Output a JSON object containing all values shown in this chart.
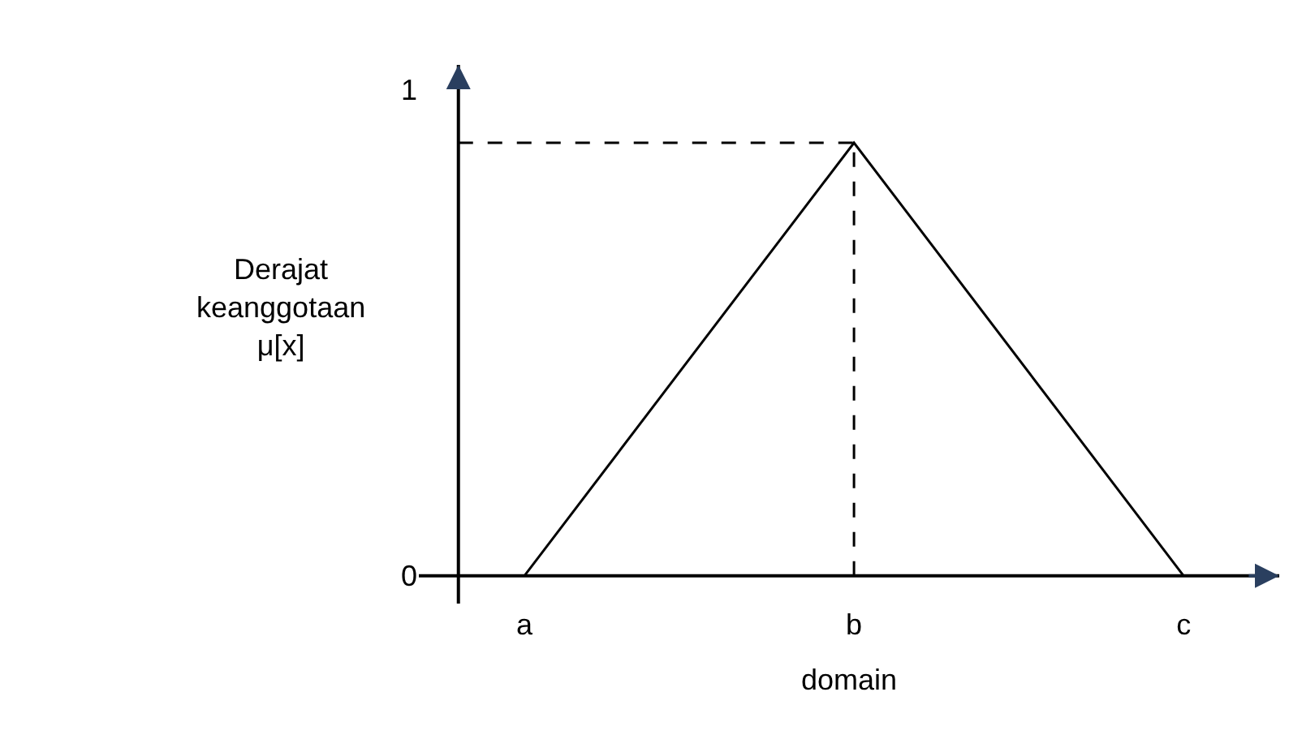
{
  "chart_data": {
    "type": "line",
    "xlabel": "domain",
    "ylabel": "Derajat keanggotaan μ[x]",
    "categories": [
      "a",
      "b",
      "c"
    ],
    "ylim": [
      -0.057,
      1.05
    ],
    "yticks": [
      0,
      1
    ],
    "marker": "none",
    "series": [
      {
        "color": "#000000",
        "values": [
          0,
          0.89,
          0
        ],
        "line_style": "solid"
      }
    ],
    "ref_lines": [
      {
        "axis": "y",
        "value": 0.89,
        "color": "#000000",
        "line_style": "dashed"
      },
      {
        "axis": "x",
        "value": "b",
        "color": "#000000",
        "line_style": "dashed"
      }
    ]
  }
}
